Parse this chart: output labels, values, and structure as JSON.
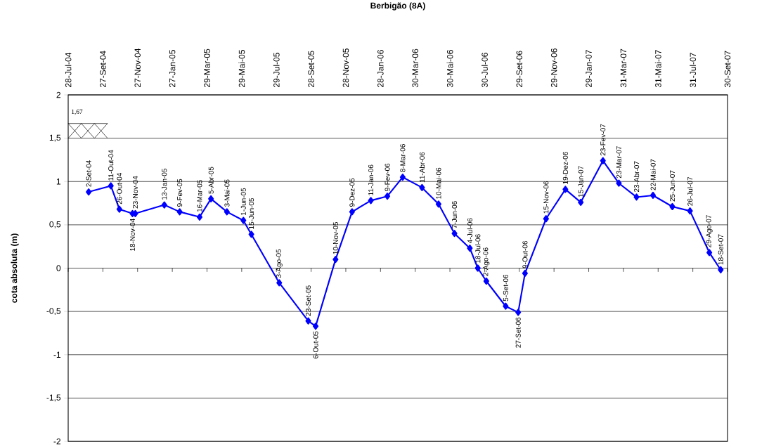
{
  "chart_data": {
    "type": "line",
    "title": "Berbigão (8A)",
    "ylabel": "cota absoluta (m)",
    "x": [
      "2004-09-02",
      "2004-10-11",
      "2004-10-26",
      "2004-11-18",
      "2004-11-23",
      "2005-01-13",
      "2005-02-09",
      "2005-03-16",
      "2005-04-05",
      "2005-05-03",
      "2005-06-01",
      "2005-06-15",
      "2005-08-03",
      "2005-09-23",
      "2005-10-06",
      "2005-11-10",
      "2005-12-09",
      "2006-01-11",
      "2006-02-09",
      "2006-03-08",
      "2006-04-11",
      "2006-05-10",
      "2006-06-07",
      "2006-07-04",
      "2006-07-18",
      "2006-08-02",
      "2006-09-05",
      "2006-09-27",
      "2006-10-09",
      "2006-11-15",
      "2006-12-19",
      "2007-01-15",
      "2007-02-23",
      "2007-03-23",
      "2007-04-23",
      "2007-05-22",
      "2007-06-25",
      "2007-07-26",
      "2007-08-29",
      "2007-09-18"
    ],
    "series": [
      {
        "color": "#0000ff",
        "values": [
          0.88,
          0.95,
          0.68,
          0.63,
          0.63,
          0.73,
          0.65,
          0.59,
          0.8,
          0.65,
          0.55,
          0.39,
          -0.17,
          -0.61,
          -0.67,
          0.1,
          0.65,
          0.78,
          0.83,
          1.05,
          0.93,
          0.74,
          0.4,
          0.23,
          0.0,
          -0.15,
          -0.44,
          -0.51,
          -0.06,
          0.57,
          0.91,
          0.76,
          1.24,
          0.98,
          0.82,
          0.84,
          0.71,
          0.66,
          0.18,
          -0.02
        ]
      }
    ],
    "marker": "diamond",
    "line_style": "solid",
    "grid": "y",
    "legend": false,
    "xlim": [
      "2004-07-28",
      "2007-09-30"
    ],
    "xticks": [
      {
        "value": "2004-07-28",
        "label": "28-Jul-04"
      },
      {
        "value": "2004-09-27",
        "label": "27-Set-04"
      },
      {
        "value": "2004-11-27",
        "label": "27-Nov-04"
      },
      {
        "value": "2005-01-27",
        "label": "27-Jan-05"
      },
      {
        "value": "2005-03-29",
        "label": "29-Mar-05"
      },
      {
        "value": "2005-05-29",
        "label": "29-Mai-05"
      },
      {
        "value": "2005-07-29",
        "label": "29-Jul-05"
      },
      {
        "value": "2005-09-28",
        "label": "28-Set-05"
      },
      {
        "value": "2005-11-28",
        "label": "28-Nov-05"
      },
      {
        "value": "2006-01-28",
        "label": "28-Jan-06"
      },
      {
        "value": "2006-03-30",
        "label": "30-Mar-06"
      },
      {
        "value": "2006-05-30",
        "label": "30-Mai-06"
      },
      {
        "value": "2006-07-30",
        "label": "30-Jul-06"
      },
      {
        "value": "2006-09-29",
        "label": "29-Set-06"
      },
      {
        "value": "2006-11-29",
        "label": "29-Nov-06"
      },
      {
        "value": "2007-01-29",
        "label": "29-Jan-07"
      },
      {
        "value": "2007-03-31",
        "label": "31-Mar-07"
      },
      {
        "value": "2007-05-31",
        "label": "31-Mai-07"
      },
      {
        "value": "2007-07-31",
        "label": "31-Jul-07"
      },
      {
        "value": "2007-09-30",
        "label": "30-Set-07"
      }
    ],
    "ylim": [
      -2,
      2
    ],
    "yticks": [
      -2,
      {
        "value": -1.5,
        "label": "-1,5"
      },
      -1,
      {
        "value": -0.5,
        "label": "-0,5"
      },
      0,
      {
        "value": 0.5,
        "label": "0,5"
      },
      1,
      {
        "value": 1.5,
        "label": "1,5"
      },
      2
    ],
    "ref_lines": [
      {
        "axis": "y",
        "value": 1.67,
        "label": "1,67"
      }
    ],
    "annotations": [
      {
        "text": "2-Set-04",
        "x": "2004-09-02",
        "y": 0.88
      },
      {
        "text": "11-Out-04",
        "x": "2004-10-11",
        "y": 0.95
      },
      {
        "text": "26-Out-04",
        "x": "2004-10-26",
        "y": 0.68
      },
      {
        "text": "18-Nov-04",
        "x": "2004-11-18",
        "y": 0.63
      },
      {
        "text": "23-Nov-04",
        "x": "2004-11-23",
        "y": 0.63
      },
      {
        "text": "13-Jan-05",
        "x": "2005-01-13",
        "y": 0.73
      },
      {
        "text": "9-Fev-05",
        "x": "2005-02-09",
        "y": 0.65
      },
      {
        "text": "16-Mar-05",
        "x": "2005-03-16",
        "y": 0.59
      },
      {
        "text": "5-Abr-05",
        "x": "2005-04-05",
        "y": 0.8
      },
      {
        "text": "3-Mai-05",
        "x": "2005-05-03",
        "y": 0.65
      },
      {
        "text": "1-Jun-05",
        "x": "2005-06-01",
        "y": 0.55
      },
      {
        "text": "15-Jun-05",
        "x": "2005-06-15",
        "y": 0.39
      },
      {
        "text": "3-Ago-05",
        "x": "2005-08-03",
        "y": -0.17
      },
      {
        "text": "23-Set-05",
        "x": "2005-09-23",
        "y": -0.61
      },
      {
        "text": "6-Out-05",
        "x": "2005-10-06",
        "y": -0.67
      },
      {
        "text": "10-Nov-05",
        "x": "2005-11-10",
        "y": 0.1
      },
      {
        "text": "9-Dez-05",
        "x": "2005-12-09",
        "y": 0.65
      },
      {
        "text": "11-Jan-06",
        "x": "2006-01-11",
        "y": 0.78
      },
      {
        "text": "9-Fev-06",
        "x": "2006-02-09",
        "y": 0.83
      },
      {
        "text": "8-Mar-06",
        "x": "2006-03-08",
        "y": 1.05
      },
      {
        "text": "11-Abr-06",
        "x": "2006-04-11",
        "y": 0.93
      },
      {
        "text": "10-Mai-06",
        "x": "2006-05-10",
        "y": 0.74
      },
      {
        "text": "7-Jun-06",
        "x": "2006-06-07",
        "y": 0.4
      },
      {
        "text": "4-Jul-06",
        "x": "2006-07-04",
        "y": 0.23
      },
      {
        "text": "18-Jul-06",
        "x": "2006-07-18",
        "y": 0.0
      },
      {
        "text": "2-Ago-06",
        "x": "2006-08-02",
        "y": -0.15
      },
      {
        "text": "5-Set-06",
        "x": "2006-09-05",
        "y": -0.44
      },
      {
        "text": "27-Set-06",
        "x": "2006-09-27",
        "y": -0.51
      },
      {
        "text": "9-Out-06",
        "x": "2006-10-09",
        "y": -0.06
      },
      {
        "text": "15-Nov-06",
        "x": "2006-11-15",
        "y": 0.57
      },
      {
        "text": "19-Dez-06",
        "x": "2006-12-19",
        "y": 0.91
      },
      {
        "text": "15-Jan-07",
        "x": "2007-01-15",
        "y": 0.76
      },
      {
        "text": "23-Fev-07",
        "x": "2007-02-23",
        "y": 1.24
      },
      {
        "text": "23-Mar-07",
        "x": "2007-03-23",
        "y": 0.98
      },
      {
        "text": "23-Abr-07",
        "x": "2007-04-23",
        "y": 0.82
      },
      {
        "text": "22-Mai-07",
        "x": "2007-05-22",
        "y": 0.84
      },
      {
        "text": "25-Jun-07",
        "x": "2007-06-25",
        "y": 0.71
      },
      {
        "text": "26-Jul-07",
        "x": "2007-07-26",
        "y": 0.66
      },
      {
        "text": "29-Ago-07",
        "x": "2007-08-29",
        "y": 0.18
      },
      {
        "text": "18-Set-07",
        "x": "2007-09-18",
        "y": -0.02
      }
    ]
  }
}
